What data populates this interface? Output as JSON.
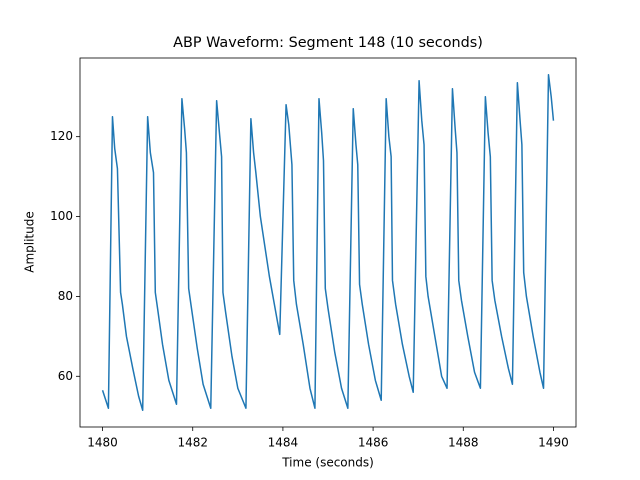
{
  "chart_data": {
    "type": "line",
    "title": "ABP Waveform: Segment 148 (10 seconds)",
    "x_label": "Time (seconds)",
    "y_label": "Amplitude",
    "x": [
      1480,
      1480.13,
      1480.22,
      1480.27,
      1480.33,
      1480.4,
      1480.44,
      1480.53,
      1480.67,
      1480.8,
      1480.89,
      1481.0,
      1481.06,
      1481.13,
      1481.17,
      1481.22,
      1481.33,
      1481.47,
      1481.64,
      1481.76,
      1481.82,
      1481.86,
      1481.91,
      1481.96,
      1482.1,
      1482.23,
      1482.4,
      1482.53,
      1482.6,
      1482.64,
      1482.67,
      1482.73,
      1482.87,
      1483.0,
      1483.18,
      1483.29,
      1483.35,
      1483.4,
      1483.5,
      1483.7,
      1483.93,
      1484.07,
      1484.13,
      1484.2,
      1484.24,
      1484.3,
      1484.45,
      1484.6,
      1484.71,
      1484.8,
      1484.86,
      1484.9,
      1484.94,
      1485.0,
      1485.15,
      1485.3,
      1485.44,
      1485.56,
      1485.62,
      1485.66,
      1485.7,
      1485.76,
      1485.9,
      1486.05,
      1486.18,
      1486.29,
      1486.35,
      1486.4,
      1486.43,
      1486.5,
      1486.65,
      1486.8,
      1486.89,
      1487.02,
      1487.08,
      1487.13,
      1487.17,
      1487.22,
      1487.37,
      1487.52,
      1487.64,
      1487.76,
      1487.82,
      1487.86,
      1487.9,
      1487.96,
      1488.1,
      1488.25,
      1488.38,
      1488.49,
      1488.55,
      1488.6,
      1488.64,
      1488.7,
      1488.85,
      1489.0,
      1489.09,
      1489.2,
      1489.26,
      1489.3,
      1489.34,
      1489.4,
      1489.55,
      1489.7,
      1489.78,
      1489.89,
      1489.95,
      1490.0
    ],
    "series": [
      {
        "color": "#1f77b4",
        "values": [
          56.5,
          52,
          125,
          117,
          112,
          81,
          78,
          70,
          62,
          55,
          51.5,
          125,
          116,
          111,
          81,
          77,
          68,
          59,
          53,
          129.5,
          122,
          116,
          82,
          78,
          67,
          58,
          52,
          129,
          120,
          115,
          81,
          76,
          65,
          57,
          52,
          124.5,
          116,
          111,
          100,
          85,
          70.5,
          128,
          123,
          113,
          84,
          78,
          68,
          57,
          52,
          129.5,
          121,
          114,
          82,
          77,
          66,
          57,
          52,
          127,
          118,
          113,
          83,
          78,
          68,
          59,
          54,
          129.5,
          120,
          115,
          84,
          78,
          68,
          60,
          56,
          134,
          124,
          118,
          85,
          80,
          70,
          60,
          57,
          132,
          122,
          116,
          84,
          79,
          70,
          61,
          57,
          130,
          121,
          115,
          84,
          79,
          70,
          62,
          58,
          133.5,
          124,
          118,
          86,
          80,
          70,
          61,
          57,
          135.5,
          130,
          124
        ]
      }
    ],
    "xlim": [
      1479.5,
      1490.5
    ],
    "ylim": [
      47.3,
      139.7
    ],
    "xticks": [
      1480,
      1482,
      1484,
      1486,
      1488,
      1490
    ],
    "yticks": [
      60,
      80,
      100,
      120
    ]
  }
}
